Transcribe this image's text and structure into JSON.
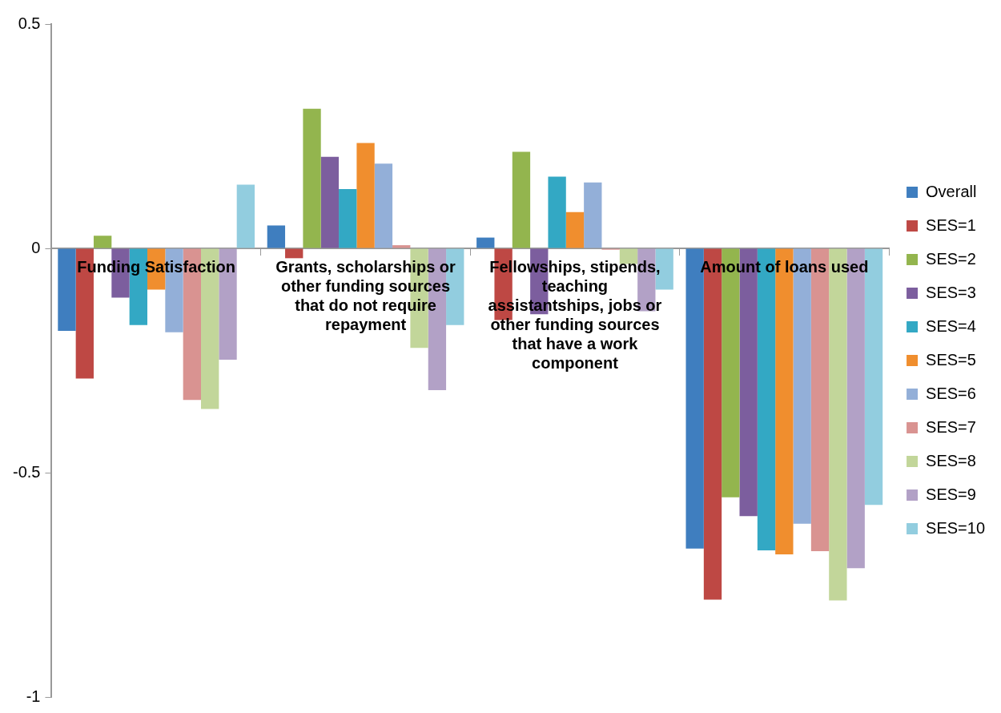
{
  "chart_data": {
    "type": "bar",
    "categories": [
      "Funding Satisfaction",
      "Grants, scholarships or other funding sources that do not require repayment",
      "Fellowships, stipends, teaching assistantships, jobs or other funding sources that have a work component",
      "Amount of loans used"
    ],
    "series": [
      {
        "name": "Overall",
        "color": "#3f7ebf",
        "values": [
          -0.184,
          0.051,
          0.024,
          -0.669
        ]
      },
      {
        "name": "SES=1",
        "color": "#be4844",
        "values": [
          -0.29,
          -0.022,
          -0.16,
          -0.783
        ]
      },
      {
        "name": "SES=2",
        "color": "#93b54e",
        "values": [
          0.028,
          0.311,
          0.215,
          -0.555
        ]
      },
      {
        "name": "SES=3",
        "color": "#7c5e9e",
        "values": [
          -0.11,
          0.204,
          -0.147,
          -0.597
        ]
      },
      {
        "name": "SES=4",
        "color": "#33a8c4",
        "values": [
          -0.171,
          0.132,
          0.16,
          -0.673
        ]
      },
      {
        "name": "SES=5",
        "color": "#f08e2e",
        "values": [
          -0.092,
          0.235,
          0.081,
          -0.682
        ]
      },
      {
        "name": "SES=6",
        "color": "#93afd8",
        "values": [
          -0.187,
          0.189,
          0.147,
          -0.614
        ]
      },
      {
        "name": "SES=7",
        "color": "#d99391",
        "values": [
          -0.338,
          0.007,
          -0.003,
          -0.675
        ]
      },
      {
        "name": "SES=8",
        "color": "#c2d69a",
        "values": [
          -0.358,
          -0.222,
          -0.035,
          -0.785
        ]
      },
      {
        "name": "SES=9",
        "color": "#b2a1c6",
        "values": [
          -0.248,
          -0.316,
          -0.14,
          -0.713
        ]
      },
      {
        "name": "SES=10",
        "color": "#92cddf",
        "values": [
          0.142,
          -0.171,
          -0.092,
          -0.572
        ]
      }
    ],
    "ylim": [
      -1,
      0.5
    ],
    "yticks": [
      -1,
      -0.5,
      0,
      0.5
    ],
    "grid": false,
    "legend": "right"
  }
}
